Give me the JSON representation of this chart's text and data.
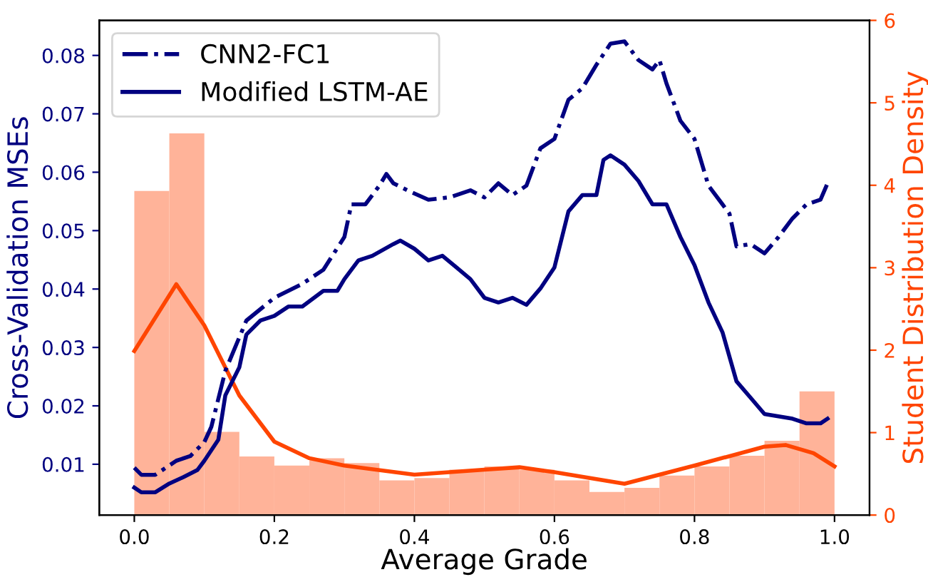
{
  "chart_data": {
    "type": "line",
    "xlabel": "Average Grade",
    "ylabel": "Cross-Validation MSEs",
    "y2label": "Student Distribution Density",
    "xlim": [
      -0.05,
      1.05
    ],
    "xticks": [
      {
        "value": 0,
        "label": "0.0"
      },
      0.2,
      0.4,
      0.6,
      0.8,
      {
        "value": 1,
        "label": "1.0"
      }
    ],
    "ylim": [
      0.0013,
      0.086
    ],
    "yticks": [
      0.01,
      0.02,
      0.03,
      0.04,
      0.05,
      0.06,
      0.07,
      0.08
    ],
    "y2lim": [
      0,
      6
    ],
    "y2ticks": [
      0,
      1,
      2,
      3,
      4,
      5,
      6
    ],
    "legend": "top left",
    "grid": false,
    "series": [
      {
        "name": "CNN2-FC1",
        "color": "#000080",
        "line_style": "dashdot",
        "x": [
          0.0,
          0.01,
          0.03,
          0.06,
          0.08,
          0.1,
          0.11,
          0.13,
          0.16,
          0.2,
          0.24,
          0.27,
          0.3,
          0.31,
          0.33,
          0.35,
          0.36,
          0.37,
          0.39,
          0.42,
          0.45,
          0.48,
          0.5,
          0.52,
          0.54,
          0.56,
          0.58,
          0.6,
          0.62,
          0.64,
          0.66,
          0.68,
          0.7,
          0.72,
          0.74,
          0.75,
          0.76,
          0.78,
          0.8,
          0.82,
          0.84,
          0.85,
          0.86,
          0.88,
          0.9,
          0.92,
          0.94,
          0.96,
          0.98,
          0.99
        ],
        "values": [
          0.0094,
          0.0082,
          0.0082,
          0.0106,
          0.0114,
          0.0138,
          0.0164,
          0.026,
          0.0346,
          0.0385,
          0.0409,
          0.0433,
          0.0489,
          0.0545,
          0.0545,
          0.0577,
          0.0597,
          0.0581,
          0.0569,
          0.0553,
          0.0557,
          0.0569,
          0.0557,
          0.0581,
          0.0561,
          0.0577,
          0.0641,
          0.0657,
          0.0724,
          0.0744,
          0.0784,
          0.082,
          0.0824,
          0.0792,
          0.0776,
          0.0792,
          0.0752,
          0.0688,
          0.0657,
          0.0577,
          0.0545,
          0.0529,
          0.0473,
          0.0477,
          0.0461,
          0.0489,
          0.0521,
          0.0545,
          0.0553,
          0.0581
        ]
      },
      {
        "name": "Modified LSTM-AE",
        "color": "#000080",
        "line_style": "solid",
        "x": [
          0.0,
          0.01,
          0.03,
          0.05,
          0.07,
          0.09,
          0.1,
          0.12,
          0.13,
          0.15,
          0.16,
          0.18,
          0.2,
          0.22,
          0.24,
          0.27,
          0.29,
          0.3,
          0.32,
          0.34,
          0.37,
          0.38,
          0.4,
          0.42,
          0.44,
          0.46,
          0.48,
          0.5,
          0.52,
          0.54,
          0.56,
          0.58,
          0.6,
          0.62,
          0.64,
          0.66,
          0.67,
          0.68,
          0.7,
          0.72,
          0.74,
          0.76,
          0.78,
          0.8,
          0.82,
          0.84,
          0.86,
          0.88,
          0.9,
          0.92,
          0.94,
          0.96,
          0.98,
          0.99
        ],
        "values": [
          0.006,
          0.0052,
          0.0052,
          0.0067,
          0.0078,
          0.009,
          0.0106,
          0.0142,
          0.0218,
          0.0266,
          0.0322,
          0.0346,
          0.0354,
          0.037,
          0.037,
          0.0397,
          0.0397,
          0.0417,
          0.0449,
          0.0457,
          0.0477,
          0.0483,
          0.0469,
          0.0449,
          0.0457,
          0.0437,
          0.0417,
          0.0385,
          0.0377,
          0.0385,
          0.0373,
          0.0401,
          0.0437,
          0.0533,
          0.0561,
          0.0561,
          0.0621,
          0.0629,
          0.0613,
          0.0585,
          0.0545,
          0.0545,
          0.0489,
          0.0441,
          0.0377,
          0.0326,
          0.0242,
          0.0214,
          0.0186,
          0.0182,
          0.0178,
          0.017,
          0.017,
          0.0178
        ]
      },
      {
        "type": "histogram",
        "axis": "y2",
        "color": "#ffb399",
        "bins": [
          0.0,
          0.05,
          0.1,
          0.15,
          0.2,
          0.25,
          0.3,
          0.35,
          0.4,
          0.45,
          0.5,
          0.55,
          0.6,
          0.65,
          0.7,
          0.75,
          0.8,
          0.85,
          0.9,
          0.95,
          1.0
        ],
        "values": [
          3.93,
          4.63,
          1.01,
          0.71,
          0.6,
          0.69,
          0.63,
          0.42,
          0.45,
          0.55,
          0.59,
          0.55,
          0.42,
          0.28,
          0.33,
          0.48,
          0.59,
          0.72,
          0.9,
          1.5
        ]
      },
      {
        "axis": "y2",
        "color": "#ff4500",
        "line_style": "solid",
        "x": [
          0.0,
          0.06,
          0.1,
          0.15,
          0.2,
          0.25,
          0.3,
          0.4,
          0.5,
          0.55,
          0.6,
          0.7,
          0.8,
          0.9,
          0.93,
          0.97,
          1.0
        ],
        "values": [
          1.99,
          2.8,
          2.3,
          1.45,
          0.89,
          0.69,
          0.6,
          0.49,
          0.55,
          0.58,
          0.52,
          0.38,
          0.6,
          0.83,
          0.85,
          0.75,
          0.59
        ]
      }
    ]
  }
}
